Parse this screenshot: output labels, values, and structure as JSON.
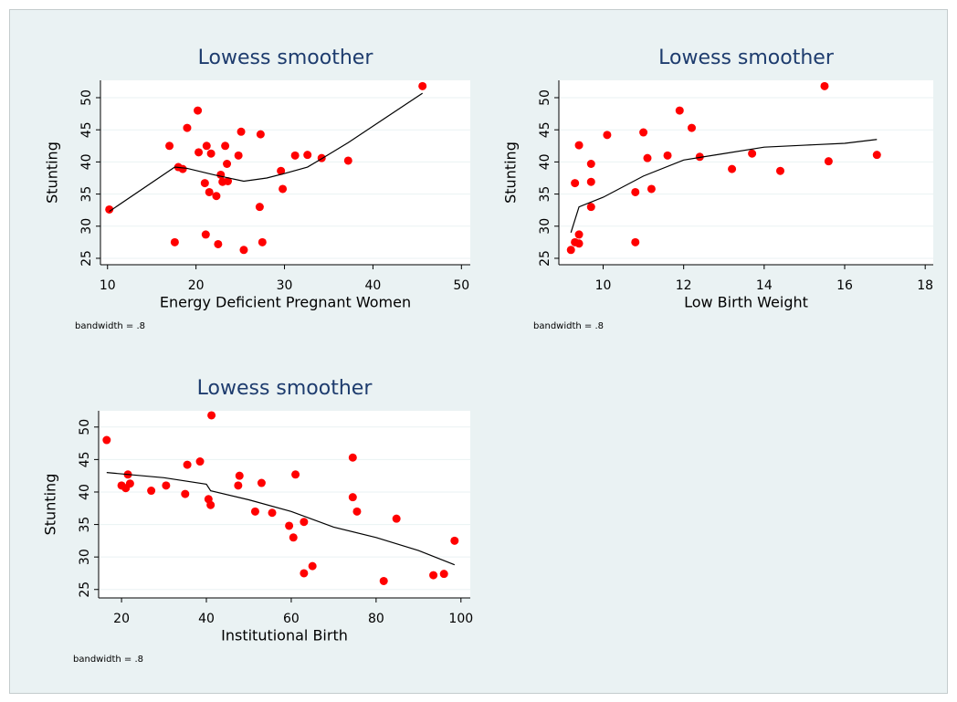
{
  "chart_data": [
    {
      "type": "scatter",
      "title": "Lowess smoother",
      "xlabel": "Energy Deficient Pregnant Women",
      "ylabel": "Stunting",
      "note": "bandwidth = .8",
      "color": "#ff0000",
      "line_color": "#000000",
      "grid": true,
      "xlim": [
        9.2,
        51
      ],
      "ylim": [
        24,
        52.7
      ],
      "xticks": [
        10,
        20,
        30,
        40,
        50
      ],
      "yticks": [
        25,
        30,
        35,
        40,
        45,
        50
      ],
      "x": [
        10.2,
        17,
        17.6,
        18,
        18.5,
        19,
        20.2,
        20.3,
        21,
        21.1,
        21.2,
        21.5,
        21.7,
        22.3,
        22.5,
        22.8,
        23,
        23.3,
        23.5,
        23.6,
        24.8,
        25.1,
        25.4,
        27.2,
        27.3,
        27.5,
        29.6,
        29.8,
        31.2,
        32.6,
        34.2,
        37.2,
        45.6
      ],
      "y": [
        32.6,
        42.5,
        27.5,
        39.2,
        38.9,
        45.3,
        48,
        41.5,
        36.7,
        28.7,
        42.5,
        35.3,
        41.3,
        34.7,
        27.2,
        38,
        36.9,
        42.5,
        39.7,
        37,
        41,
        44.7,
        26.3,
        33,
        44.3,
        27.5,
        38.6,
        35.8,
        41,
        41.1,
        40.6,
        40.2,
        51.8
      ],
      "lowess": {
        "x": [
          10.2,
          17.6,
          19,
          22,
          25.4,
          28,
          30,
          32.6,
          34.2,
          37.2,
          45.6
        ],
        "y": [
          32.3,
          39.2,
          39,
          38,
          37,
          37.5,
          38.2,
          39.2,
          40.5,
          43,
          50.7
        ]
      }
    },
    {
      "type": "scatter",
      "title": "Lowess smoother",
      "xlabel": "Low Birth Weight",
      "ylabel": "Stunting",
      "note": "bandwidth = .8",
      "color": "#ff0000",
      "line_color": "#000000",
      "grid": true,
      "xlim": [
        8.9,
        18.2
      ],
      "ylim": [
        24,
        52.7
      ],
      "xticks": [
        10,
        12,
        14,
        16,
        18
      ],
      "yticks": [
        25,
        30,
        35,
        40,
        45,
        50
      ],
      "x": [
        9.2,
        9.3,
        9.3,
        9.4,
        9.4,
        9.4,
        9.7,
        9.7,
        9.7,
        10.1,
        10.8,
        10.8,
        11,
        11.1,
        11.2,
        11.6,
        11.9,
        12.2,
        12.4,
        13.2,
        13.7,
        14.4,
        15.5,
        15.6,
        16.8
      ],
      "y": [
        26.3,
        36.7,
        27.5,
        27.3,
        28.7,
        42.6,
        39.7,
        36.9,
        33,
        44.2,
        35.3,
        27.5,
        44.6,
        40.6,
        35.8,
        41,
        48,
        45.3,
        40.8,
        38.9,
        41.3,
        38.6,
        51.8,
        40.1,
        41.1
      ],
      "lowess": {
        "x": [
          9.2,
          9.4,
          10,
          11,
          12,
          13,
          14,
          15,
          16,
          16.8
        ],
        "y": [
          29,
          33,
          34.5,
          37.8,
          40.3,
          41.3,
          42.3,
          42.6,
          42.9,
          43.5
        ]
      }
    },
    {
      "type": "scatter",
      "title": "Lowess smoother",
      "xlabel": "Institutional Birth",
      "ylabel": "Stunting",
      "note": "bandwidth = .8",
      "color": "#ff0000",
      "line_color": "#000000",
      "grid": true,
      "xlim": [
        14.6,
        102.2
      ],
      "ylim": [
        23.7,
        52.5
      ],
      "xticks": [
        20,
        40,
        60,
        80,
        100
      ],
      "yticks": [
        25,
        30,
        35,
        40,
        45,
        50
      ],
      "x": [
        16.5,
        20,
        21,
        21.5,
        22,
        27,
        30.5,
        35,
        35.5,
        38.5,
        40.5,
        41,
        41.2,
        47.5,
        47.8,
        51.5,
        53,
        55.5,
        59.5,
        60.5,
        61,
        63,
        63,
        65,
        74.5,
        74.5,
        75.5,
        81.8,
        84.8,
        93.5,
        96,
        98.5
      ],
      "y": [
        48,
        41,
        40.6,
        42.7,
        41.3,
        40.2,
        41,
        39.7,
        44.2,
        44.7,
        38.9,
        38,
        51.8,
        41,
        42.5,
        37,
        41.4,
        36.8,
        34.8,
        33,
        42.7,
        35.4,
        27.5,
        28.6,
        45.3,
        39.2,
        37,
        26.3,
        35.9,
        27.2,
        27.4,
        32.5
      ],
      "lowess": {
        "x": [
          16.5,
          30,
          40,
          41,
          50,
          60,
          70,
          80,
          90,
          98.5
        ],
        "y": [
          43,
          42.2,
          41.2,
          40.2,
          38.8,
          37,
          34.6,
          33,
          31,
          28.8
        ]
      }
    }
  ]
}
